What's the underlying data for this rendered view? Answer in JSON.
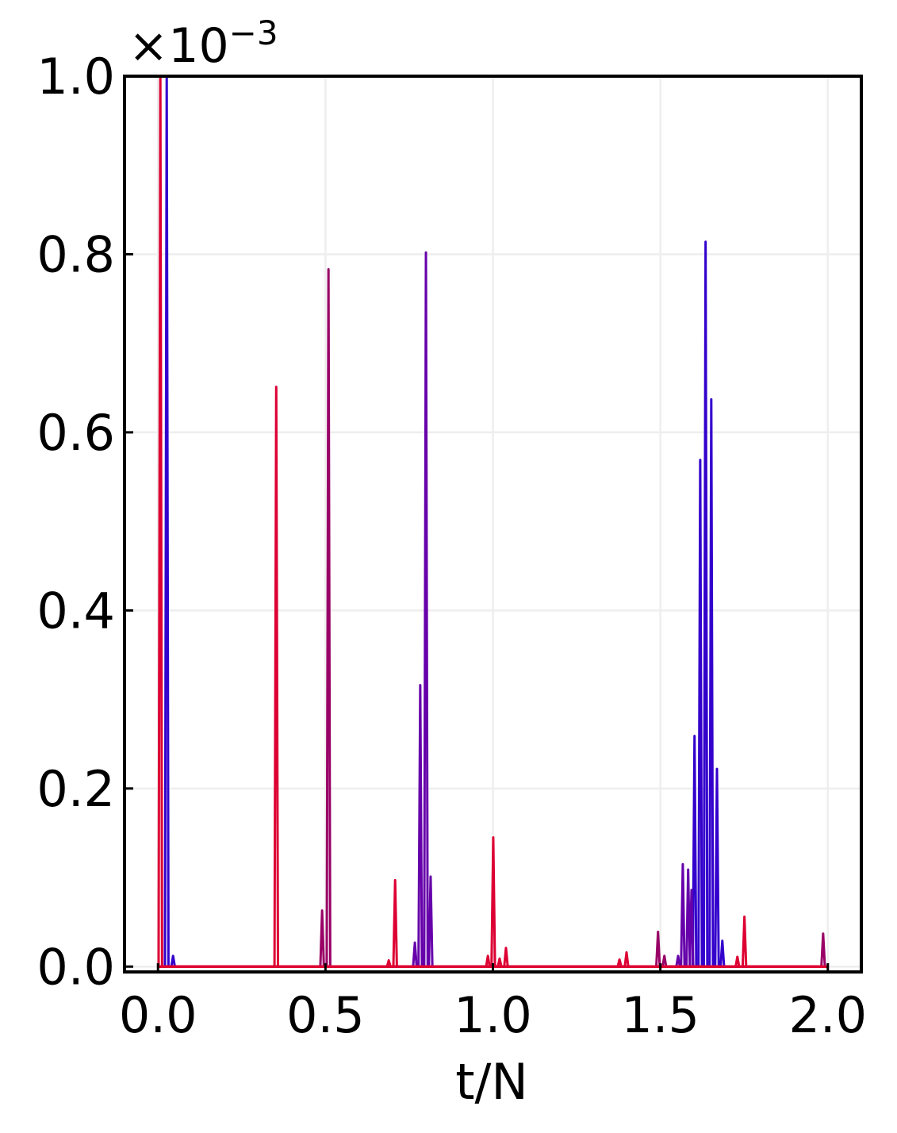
{
  "chart_data": {
    "type": "line",
    "x_label": "t/N",
    "offset_label": {
      "base": "×10",
      "exponent": "−3"
    },
    "xlim": [
      -0.1,
      2.1
    ],
    "ylim": [
      -0.006,
      1.0
    ],
    "xticks": [
      {
        "value": 0,
        "label": "0.0"
      },
      0.5,
      {
        "value": 1,
        "label": "1.0"
      },
      1.5,
      {
        "value": 2,
        "label": "2.0"
      }
    ],
    "yticks": [
      {
        "value": 0,
        "label": "0.0"
      },
      0.2,
      0.4,
      0.6,
      0.8,
      {
        "value": 1,
        "label": "1.0"
      }
    ],
    "grid": true,
    "baseline_color": "#dd0033",
    "series": [
      {
        "color": "#3300cc",
        "x": [
          0.026,
          0.045,
          1.602,
          1.619,
          1.635,
          1.652,
          1.669,
          1.685
        ],
        "values": [
          1.0,
          0.012,
          0.259,
          0.569,
          0.814,
          0.637,
          0.222,
          0.029
        ]
      },
      {
        "color": "#6600aa",
        "x": [
          0.767,
          0.783,
          0.8,
          0.814,
          1.553,
          1.567,
          1.583,
          1.593
        ],
        "values": [
          0.027,
          0.316,
          0.802,
          0.101,
          0.012,
          0.115,
          0.109,
          0.086
        ]
      },
      {
        "color": "#990066",
        "x": [
          0.49,
          0.509,
          1.493,
          1.512,
          1.986
        ],
        "values": [
          0.063,
          0.783,
          0.039,
          0.012,
          0.037
        ]
      },
      {
        "color": "#dd0033",
        "x": [
          0.007,
          0.353,
          0.689,
          0.708,
          0.985,
          1.001,
          1.02,
          1.039,
          1.378,
          1.399,
          1.73,
          1.751
        ],
        "values": [
          1.0,
          0.651,
          0.007,
          0.097,
          0.012,
          0.145,
          0.009,
          0.021,
          0.008,
          0.016,
          0.011,
          0.056
        ]
      }
    ]
  }
}
